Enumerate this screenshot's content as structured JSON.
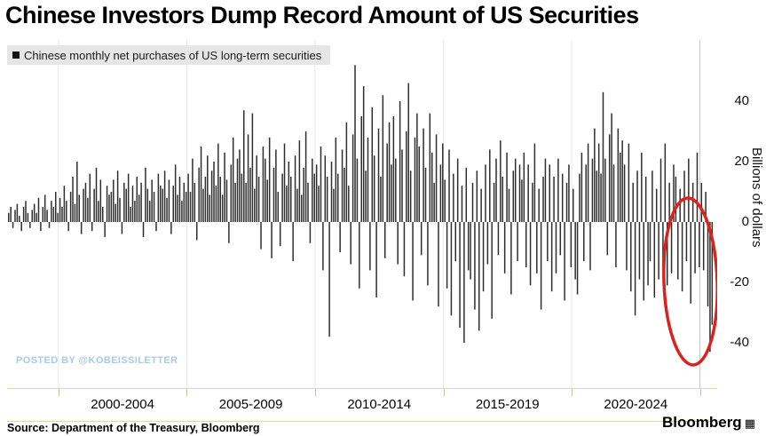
{
  "title": "Chinese Investors Dump Record Amount of US Securities",
  "legend": {
    "label": "Chinese monthly net purchases of US long-term securities",
    "marker_color": "#141414"
  },
  "watermark": "POSTED BY @KOBEISSILETTER",
  "source": "Source: Department of the Treasury, Bloomberg",
  "brand": {
    "name": "Bloomberg"
  },
  "y_axis": {
    "label": "Billions of dollars",
    "ticks": [
      40,
      20,
      0,
      -20,
      -40
    ]
  },
  "x_axis": {
    "labels": [
      "2000-2004",
      "2005-2009",
      "2010-2014",
      "2015-2019",
      "2020-2024"
    ],
    "tick_years": [
      2000,
      2005,
      2010,
      2015,
      2020,
      2025
    ]
  },
  "annotation": {
    "shape": "ellipse",
    "color": "#d8231f"
  },
  "chart_data": {
    "type": "bar",
    "title": "Chinese monthly net purchases of US long-term securities",
    "ylabel": "Billions of dollars",
    "ylim": [
      -54,
      58
    ],
    "x_start_year": 1998,
    "x_end_year": 2025.5,
    "frequency": "monthly",
    "bar_color": "#2e2e2e",
    "values": [
      3,
      5,
      -2,
      4,
      6,
      2,
      -3,
      5,
      7,
      3,
      -2,
      4,
      6,
      3,
      8,
      -3,
      5,
      9,
      4,
      -2,
      7,
      5,
      10,
      3,
      8,
      5,
      12,
      7,
      -3,
      10,
      15,
      6,
      20,
      9,
      -4,
      11,
      13,
      8,
      16,
      -3,
      11,
      18,
      7,
      14,
      5,
      -5,
      12,
      9,
      10,
      14,
      6,
      17,
      8,
      -4,
      13,
      11,
      16,
      5,
      12,
      7,
      15,
      9,
      13,
      -5,
      18,
      11,
      7,
      14,
      10,
      -3,
      16,
      12,
      11,
      17,
      8,
      14,
      -4,
      12,
      19,
      9,
      15,
      7,
      13,
      10,
      16,
      10,
      21,
      13,
      -6,
      18,
      25,
      11,
      15,
      22,
      9,
      17,
      20,
      12,
      26,
      15,
      9,
      23,
      14,
      -7,
      19,
      28,
      13,
      21,
      24,
      16,
      37,
      13,
      29,
      18,
      36,
      11,
      22,
      15,
      -9,
      25,
      21,
      14,
      28,
      -12,
      18,
      24,
      10,
      -8,
      16,
      26,
      12,
      20,
      15,
      -13,
      22,
      11,
      27,
      9,
      18,
      30,
      13,
      -7,
      21,
      16,
      19,
      12,
      25,
      -16,
      22,
      15,
      -38,
      20,
      11,
      28,
      16,
      -10,
      24,
      18,
      33,
      12,
      -14,
      29,
      52,
      21,
      -22,
      35,
      45,
      17,
      28,
      -16,
      38,
      22,
      -25,
      31,
      15,
      42,
      -12,
      26,
      33,
      19,
      35,
      21,
      -14,
      40,
      24,
      -18,
      30,
      46,
      17,
      -26,
      28,
      36,
      25,
      -11,
      31,
      18,
      -21,
      36,
      23,
      13,
      29,
      -28,
      19,
      26,
      14,
      -22,
      24,
      -31,
      16,
      -13,
      21,
      -35,
      12,
      -40,
      18,
      -16,
      -19,
      13,
      -29,
      17,
      -36,
      11,
      -23,
      19,
      -14,
      24,
      -32,
      13,
      21,
      -11,
      27,
      15,
      -17,
      23,
      11,
      -24,
      17,
      21,
      -13,
      19,
      14,
      23,
      -15,
      19,
      -21,
      13,
      26,
      -17,
      11,
      -29,
      15,
      21,
      -13,
      19,
      -23,
      15,
      -17,
      21,
      -11,
      16,
      -26,
      13,
      19,
      -15,
      11,
      -19,
      -24,
      16,
      23,
      -13,
      19,
      26,
      -16,
      21,
      31,
      17,
      26,
      16,
      43,
      21,
      -11,
      29,
      36,
      19,
      -15,
      31,
      23,
      27,
      19,
      -16,
      26,
      -23,
      13,
      -31,
      17,
      -19,
      23,
      -26,
      15,
      -21,
      -13,
      17,
      -25,
      11,
      -19,
      21,
      -15,
      26,
      -21,
      13,
      -17,
      19,
      15,
      -19,
      11,
      -23,
      17,
      -13,
      21,
      -27,
      13,
      -17,
      23,
      -15,
      13,
      -16,
      10,
      -28,
      -43,
      -34
    ]
  }
}
